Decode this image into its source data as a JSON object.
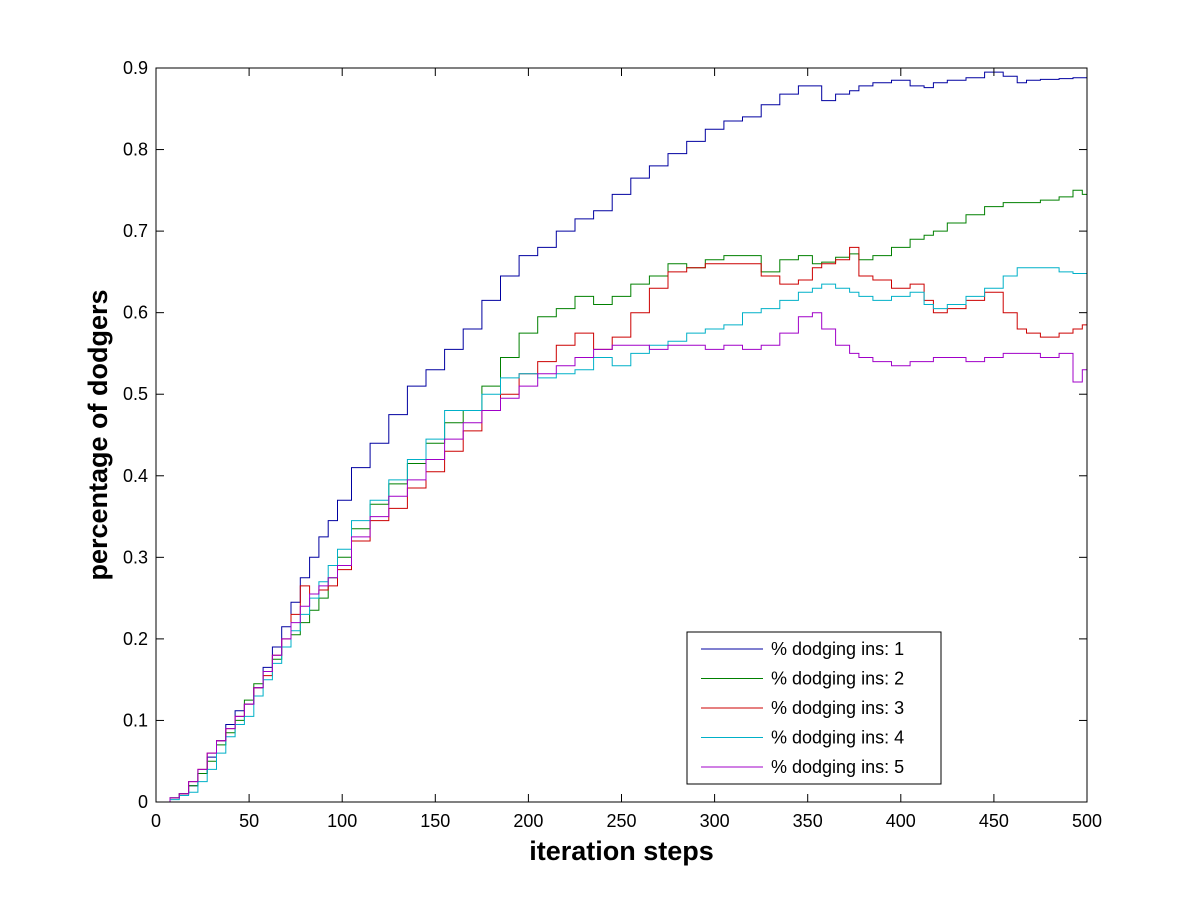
{
  "chart_data": {
    "type": "line",
    "xlabel": "iteration steps",
    "ylabel": "percentage of dodgers",
    "xlim": [
      0,
      500
    ],
    "ylim": [
      0,
      0.9
    ],
    "xticks": [
      0,
      50,
      100,
      150,
      200,
      250,
      300,
      350,
      400,
      450,
      500
    ],
    "yticks": [
      0,
      0.1,
      0.2,
      0.3,
      0.4,
      0.5,
      0.6,
      0.7,
      0.8,
      0.9
    ],
    "ytick_labels": [
      "0",
      "0.1",
      "0.2",
      "0.3",
      "0.4",
      "0.5",
      "0.6",
      "0.7",
      "0.8",
      "0.9"
    ],
    "grid": false,
    "legend_position": "bottom-right",
    "x": [
      5,
      10,
      15,
      20,
      25,
      30,
      35,
      40,
      45,
      50,
      55,
      60,
      65,
      70,
      75,
      80,
      85,
      90,
      95,
      100,
      110,
      120,
      130,
      140,
      150,
      160,
      170,
      180,
      190,
      200,
      210,
      220,
      230,
      240,
      250,
      260,
      270,
      280,
      290,
      300,
      310,
      320,
      330,
      340,
      350,
      355,
      360,
      370,
      375,
      380,
      390,
      400,
      410,
      415,
      420,
      430,
      440,
      450,
      460,
      465,
      470,
      480,
      490,
      495,
      500
    ],
    "series": [
      {
        "name": "% dodging ins: 1",
        "color": "#0000a0",
        "values": [
          0.0,
          0.005,
          0.01,
          0.02,
          0.035,
          0.055,
          0.075,
          0.095,
          0.112,
          0.12,
          0.14,
          0.165,
          0.19,
          0.215,
          0.245,
          0.275,
          0.3,
          0.325,
          0.345,
          0.37,
          0.41,
          0.44,
          0.475,
          0.51,
          0.53,
          0.555,
          0.58,
          0.615,
          0.645,
          0.67,
          0.68,
          0.7,
          0.715,
          0.725,
          0.745,
          0.765,
          0.78,
          0.795,
          0.81,
          0.825,
          0.835,
          0.84,
          0.855,
          0.868,
          0.878,
          0.878,
          0.86,
          0.868,
          0.872,
          0.878,
          0.882,
          0.885,
          0.878,
          0.876,
          0.882,
          0.885,
          0.888,
          0.895,
          0.89,
          0.882,
          0.885,
          0.886,
          0.887,
          0.888,
          0.888
        ]
      },
      {
        "name": "% dodging ins: 2",
        "color": "#008000",
        "values": [
          0.0,
          0.005,
          0.01,
          0.02,
          0.035,
          0.05,
          0.07,
          0.085,
          0.1,
          0.125,
          0.145,
          0.16,
          0.175,
          0.19,
          0.205,
          0.22,
          0.235,
          0.25,
          0.275,
          0.3,
          0.335,
          0.365,
          0.39,
          0.415,
          0.44,
          0.465,
          0.48,
          0.51,
          0.545,
          0.575,
          0.595,
          0.605,
          0.62,
          0.61,
          0.62,
          0.635,
          0.645,
          0.66,
          0.655,
          0.665,
          0.67,
          0.67,
          0.65,
          0.665,
          0.67,
          0.66,
          0.662,
          0.668,
          0.672,
          0.665,
          0.67,
          0.68,
          0.69,
          0.695,
          0.7,
          0.71,
          0.72,
          0.73,
          0.735,
          0.735,
          0.735,
          0.738,
          0.742,
          0.75,
          0.745
        ]
      },
      {
        "name": "% dodging ins: 3",
        "color": "#cc0000",
        "values": [
          0.0,
          0.005,
          0.01,
          0.025,
          0.04,
          0.06,
          0.075,
          0.09,
          0.105,
          0.12,
          0.14,
          0.155,
          0.18,
          0.2,
          0.23,
          0.265,
          0.255,
          0.26,
          0.265,
          0.285,
          0.32,
          0.345,
          0.36,
          0.385,
          0.405,
          0.43,
          0.455,
          0.48,
          0.5,
          0.525,
          0.54,
          0.56,
          0.575,
          0.555,
          0.57,
          0.6,
          0.63,
          0.65,
          0.655,
          0.66,
          0.66,
          0.66,
          0.645,
          0.635,
          0.64,
          0.655,
          0.66,
          0.665,
          0.68,
          0.645,
          0.64,
          0.63,
          0.635,
          0.615,
          0.6,
          0.605,
          0.615,
          0.625,
          0.6,
          0.58,
          0.575,
          0.57,
          0.575,
          0.58,
          0.585
        ]
      },
      {
        "name": "% dodging ins: 4",
        "color": "#00b0c8",
        "values": [
          0.0,
          0.003,
          0.008,
          0.012,
          0.025,
          0.04,
          0.06,
          0.08,
          0.095,
          0.105,
          0.13,
          0.15,
          0.17,
          0.19,
          0.21,
          0.23,
          0.25,
          0.27,
          0.29,
          0.31,
          0.345,
          0.37,
          0.395,
          0.42,
          0.445,
          0.48,
          0.48,
          0.5,
          0.52,
          0.525,
          0.52,
          0.525,
          0.53,
          0.545,
          0.535,
          0.55,
          0.56,
          0.565,
          0.575,
          0.58,
          0.585,
          0.6,
          0.605,
          0.615,
          0.625,
          0.63,
          0.635,
          0.63,
          0.625,
          0.62,
          0.615,
          0.62,
          0.625,
          0.61,
          0.605,
          0.61,
          0.62,
          0.63,
          0.645,
          0.655,
          0.655,
          0.655,
          0.65,
          0.648,
          0.648
        ]
      },
      {
        "name": "% dodging ins: 5",
        "color": "#a000c8",
        "values": [
          0.0,
          0.005,
          0.01,
          0.025,
          0.04,
          0.06,
          0.075,
          0.09,
          0.105,
          0.12,
          0.14,
          0.16,
          0.18,
          0.2,
          0.22,
          0.24,
          0.255,
          0.265,
          0.275,
          0.29,
          0.325,
          0.35,
          0.375,
          0.395,
          0.42,
          0.445,
          0.465,
          0.48,
          0.495,
          0.51,
          0.525,
          0.535,
          0.545,
          0.555,
          0.56,
          0.56,
          0.555,
          0.56,
          0.56,
          0.555,
          0.56,
          0.555,
          0.56,
          0.575,
          0.595,
          0.6,
          0.58,
          0.56,
          0.55,
          0.545,
          0.54,
          0.535,
          0.54,
          0.54,
          0.545,
          0.545,
          0.54,
          0.545,
          0.55,
          0.55,
          0.55,
          0.545,
          0.55,
          0.515,
          0.53
        ]
      }
    ]
  }
}
